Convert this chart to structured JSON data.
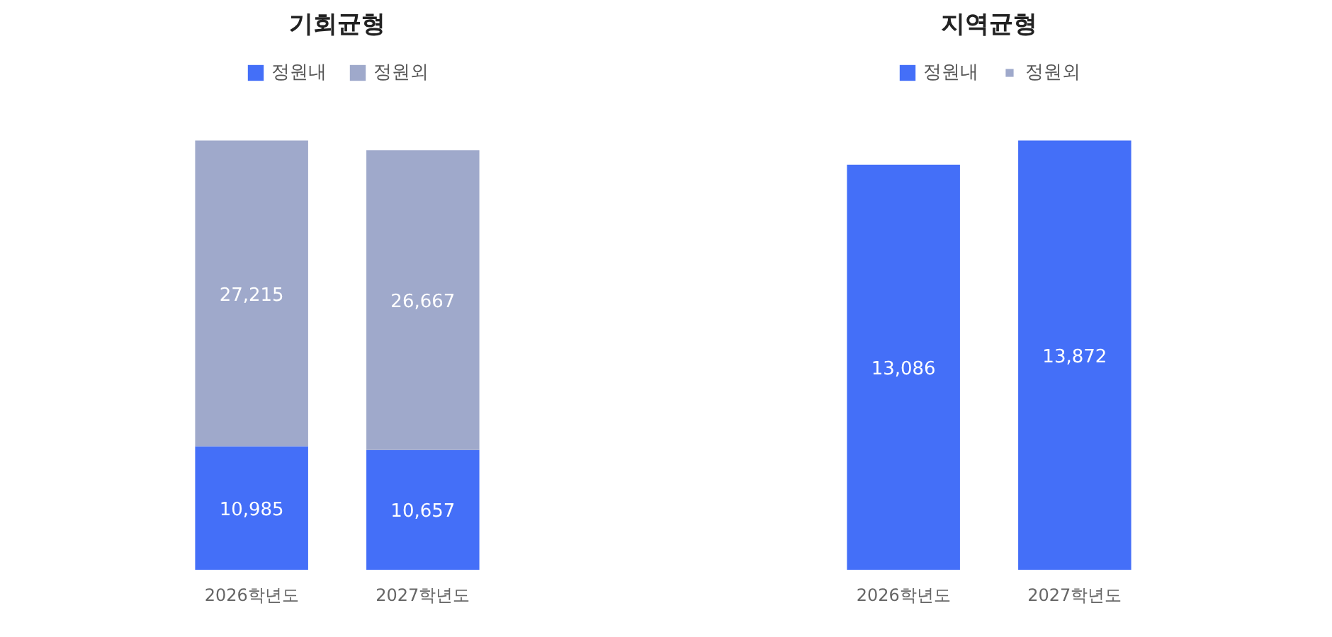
{
  "chart_data": [
    {
      "type": "bar",
      "title": "기회균형",
      "categories": [
        "2026학년도",
        "2027학년도"
      ],
      "stacked": true,
      "legend": "top",
      "grid": false,
      "series": [
        {
          "name": "정원내",
          "color": "#446ff8",
          "values": [
            10985,
            10657
          ],
          "value_labels": [
            "10,985",
            "10,657"
          ]
        },
        {
          "name": "정원외",
          "color": "#9fa9cb",
          "values": [
            27215,
            26667
          ],
          "value_labels": [
            "27,215",
            "26,667"
          ]
        }
      ]
    },
    {
      "type": "bar",
      "title": "지역균형",
      "categories": [
        "2026학년도",
        "2027학년도"
      ],
      "stacked": true,
      "legend": "top",
      "grid": false,
      "series": [
        {
          "name": "정원내",
          "color": "#446ff8",
          "values": [
            13086,
            13872
          ],
          "value_labels": [
            "13,086",
            "13,872"
          ]
        },
        {
          "name": "정원외",
          "color": "#9fa9cb",
          "values": [
            null,
            null
          ]
        }
      ]
    }
  ]
}
